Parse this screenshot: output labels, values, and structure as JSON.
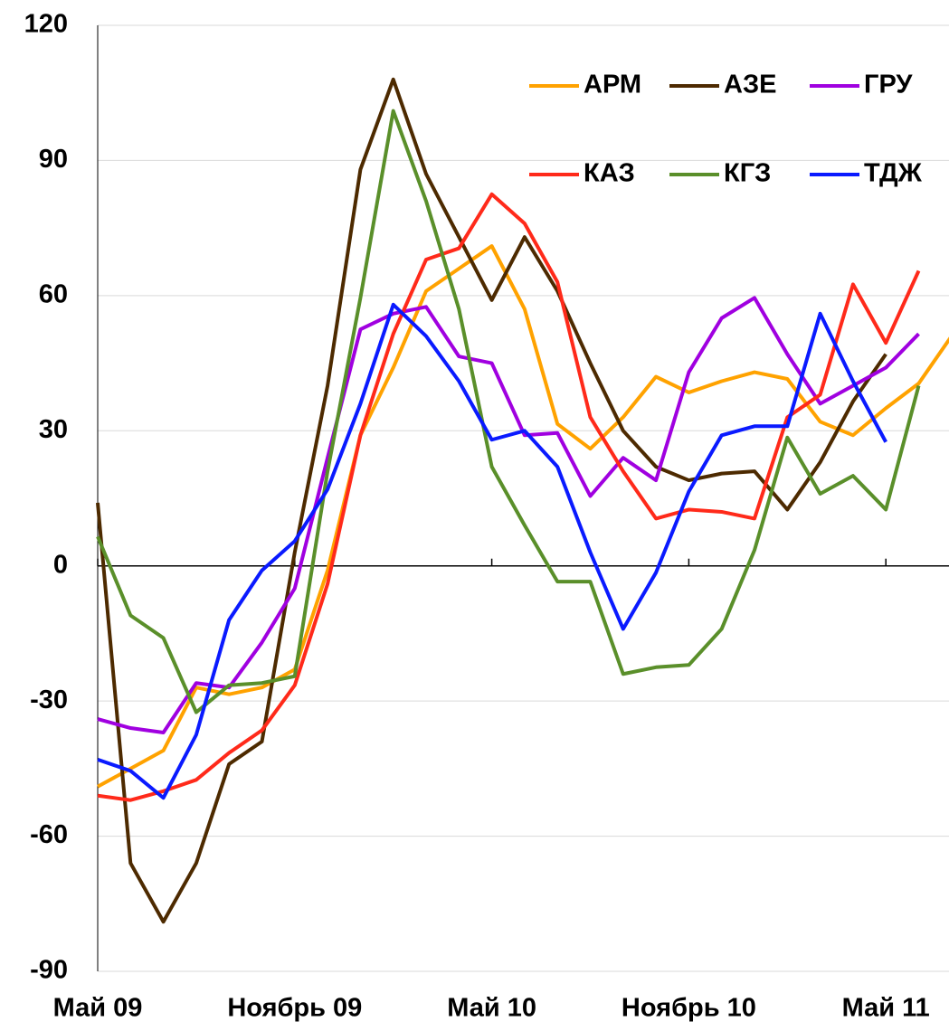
{
  "chart_data": {
    "type": "line",
    "categories": [
      "Май 09",
      null,
      null,
      null,
      null,
      null,
      "Ноябрь 09",
      null,
      null,
      null,
      null,
      null,
      "Май 10",
      null,
      null,
      null,
      null,
      null,
      "Ноябрь 10",
      null,
      null,
      null,
      null,
      null,
      "Май 11",
      null,
      null
    ],
    "series": [
      {
        "name": "АРМ",
        "color": "#ffa200",
        "values": [
          -49,
          -45,
          -41,
          -27,
          -28.5,
          -27,
          -23,
          -1,
          29,
          44,
          61,
          66,
          71,
          57,
          31.5,
          26,
          33,
          42,
          38.5,
          41,
          43,
          41.5,
          32,
          29,
          35,
          40.5,
          51
        ]
      },
      {
        "name": "АЗЕ",
        "color": "#4d2a00",
        "values": [
          14,
          -66,
          -79,
          -66,
          -44,
          -39,
          3,
          40,
          88,
          108,
          87,
          73,
          59,
          73,
          61,
          45,
          30,
          22,
          19,
          20.5,
          21,
          12.5,
          23,
          36.5,
          47,
          null,
          null
        ]
      },
      {
        "name": "ГРУ",
        "color": "#a000e0",
        "values": [
          -34,
          -36,
          -37,
          -26,
          -27,
          -17,
          -5,
          24,
          52.5,
          56,
          57.5,
          46.5,
          45,
          29,
          29.5,
          15.5,
          24,
          19,
          43,
          55,
          59.5,
          47,
          36,
          40,
          44,
          51.5,
          null
        ]
      },
      {
        "name": "КАЗ",
        "color": "#ff2a1a",
        "values": [
          -51,
          -52,
          -50,
          -47.5,
          -41.5,
          -36.5,
          -26.5,
          -4,
          29,
          51.5,
          68,
          70.5,
          82.5,
          76,
          63,
          33,
          21,
          10.5,
          12.5,
          12,
          10.5,
          33,
          38,
          62.5,
          49.5,
          65.5,
          null
        ]
      },
      {
        "name": "КГЗ",
        "color": "#5a8f2a",
        "values": [
          6.5,
          -11,
          -16,
          -32.5,
          -26.5,
          -26,
          -24.5,
          21,
          59.5,
          101,
          81,
          57,
          22,
          9,
          -3.5,
          -3.5,
          -24,
          -22.5,
          -22,
          -14,
          3.5,
          28.5,
          16,
          20,
          12.5,
          40,
          null
        ]
      },
      {
        "name": "ТДЖ",
        "color": "#0a1aff",
        "values": [
          -43,
          -45.5,
          -51.5,
          -37.5,
          -12,
          -1,
          5.5,
          17,
          36,
          58,
          51,
          41,
          28,
          30,
          22,
          3,
          -14,
          -1.5,
          16.5,
          29,
          31,
          31,
          56,
          41,
          27.5,
          null,
          null
        ]
      }
    ],
    "ylim": [
      -90,
      120
    ],
    "yticks": [
      -90,
      -60,
      -30,
      0,
      30,
      60,
      90,
      120
    ],
    "grid": true,
    "legend": "upper right"
  }
}
